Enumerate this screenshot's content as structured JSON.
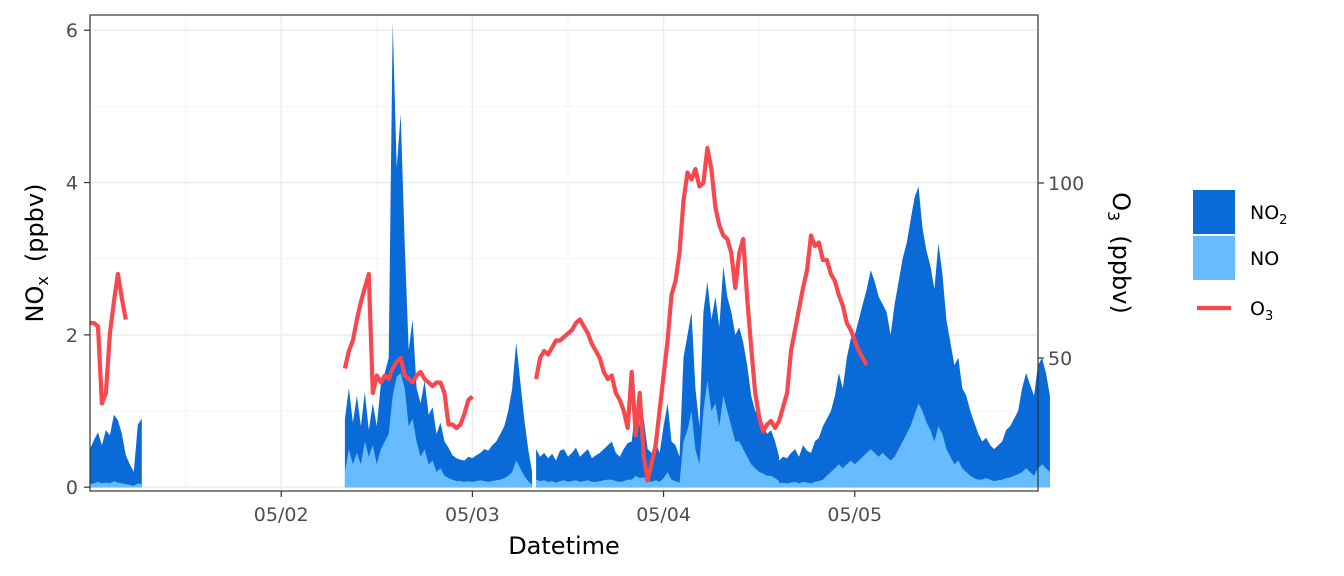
{
  "chart_data": {
    "type": "area",
    "xlabel": "Datetime",
    "ylabel_left": {
      "main": "NO",
      "sub": "x",
      "unit": "(ppbv)"
    },
    "ylabel_right": {
      "main": "O",
      "sub": "3",
      "unit": "(ppbv)"
    },
    "x_domain": [
      "2019-05-01 00:00",
      "2019-05-05 23:00"
    ],
    "x_ticks": [
      {
        "label": "05/02",
        "t": "2019-05-02 00:00"
      },
      {
        "label": "05/03",
        "t": "2019-05-03 00:00"
      },
      {
        "label": "05/04",
        "t": "2019-05-04 00:00"
      },
      {
        "label": "05/05",
        "t": "2019-05-05 00:00"
      }
    ],
    "ylim_left": [
      -0.05,
      6.2
    ],
    "yticks_left": [
      0,
      2,
      4,
      6
    ],
    "ylim_right": [
      12,
      148
    ],
    "yticks_right": [
      50,
      100
    ],
    "grid": true,
    "legend_position": "right",
    "legend": [
      {
        "label": "NO",
        "sub": "2",
        "kind": "fill",
        "color": "#0a6ad8"
      },
      {
        "label": "NO",
        "sub": "",
        "kind": "fill",
        "color": "#66bcff"
      },
      {
        "label": "O",
        "sub": "3",
        "kind": "line",
        "color": "#f6484e"
      }
    ],
    "colors": {
      "no2": "#0a6ad8",
      "no": "#66bcff",
      "o3": "#f6484e"
    },
    "series": [
      {
        "name": "NOx",
        "axis": "left",
        "segments": [
          {
            "start": "2019-05-01 00:00",
            "step_hours": 0.5,
            "values": [
              0.5,
              0.62,
              0.72,
              0.55,
              0.75,
              0.68,
              0.95,
              0.88,
              0.7,
              0.42,
              0.3,
              0.2,
              0.82,
              0.9
            ]
          },
          {
            "start": "2019-05-02 08:00",
            "step_hours": 0.5,
            "values": [
              0.9,
              1.3,
              0.85,
              1.2,
              0.8,
              1.25,
              0.75,
              1.1,
              0.8,
              1.35,
              1.5,
              1.7,
              6.1,
              4.2,
              4.9,
              3.2,
              1.8,
              2.2,
              1.3,
              1.1,
              1.4,
              0.95,
              1.05,
              0.7,
              0.85,
              0.6,
              0.52,
              0.42,
              0.38,
              0.36,
              0.35,
              0.4,
              0.38,
              0.42,
              0.45,
              0.5,
              0.48,
              0.55,
              0.6,
              0.7,
              0.8,
              1.0,
              1.3,
              1.9,
              1.4,
              0.9,
              0.5,
              0.2
            ]
          },
          {
            "start": "2019-05-03 08:00",
            "step_hours": 0.5,
            "values": [
              0.5,
              0.4,
              0.45,
              0.38,
              0.44,
              0.35,
              0.48,
              0.5,
              0.4,
              0.45,
              0.52,
              0.4,
              0.45,
              0.5,
              0.38,
              0.42,
              0.45,
              0.5,
              0.55,
              0.6,
              0.45,
              0.4,
              0.5,
              0.58,
              0.6,
              1.05,
              0.8,
              0.9,
              0.5,
              0.45,
              0.6,
              0.45,
              0.8,
              1.1,
              0.6,
              0.55,
              0.4,
              1.7,
              2.0,
              2.3,
              1.3,
              0.8,
              2.3,
              2.7,
              2.2,
              2.5,
              2.1,
              2.9,
              2.5,
              2.3,
              2.0,
              2.1,
              1.9,
              1.6,
              1.2,
              1.0,
              0.95,
              0.8,
              0.7,
              0.75,
              0.6,
              0.4
            ]
          },
          {
            "start": "2019-05-04 14:00",
            "step_hours": 0.5,
            "values": [
              0.3,
              0.35,
              0.4,
              0.38,
              0.45,
              0.5,
              0.4,
              0.55,
              0.48,
              0.45,
              0.6,
              0.65,
              0.8,
              0.9,
              1.0,
              1.2,
              1.5,
              1.3,
              1.7,
              1.95,
              2.0,
              2.2,
              2.4,
              2.6,
              2.85,
              2.7,
              2.5,
              2.4,
              2.3,
              2.0,
              2.4,
              2.7,
              3.0,
              3.2,
              3.5,
              3.8,
              3.95,
              3.4,
              3.1,
              2.9,
              2.6,
              3.2,
              2.8,
              2.2,
              1.9,
              1.6,
              1.7,
              1.3,
              1.2,
              1.0,
              0.85,
              0.7,
              0.6,
              0.65,
              0.55,
              0.5,
              0.55,
              0.6,
              0.75,
              0.8,
              0.9,
              1.0,
              1.3,
              1.5,
              1.35,
              1.2,
              1.6,
              1.7,
              1.5,
              1.2
            ]
          }
        ]
      },
      {
        "name": "NO",
        "axis": "left",
        "segments": [
          {
            "start": "2019-05-01 00:00",
            "step_hours": 0.5,
            "values": [
              0.04,
              0.05,
              0.07,
              0.05,
              0.06,
              0.05,
              0.08,
              0.06,
              0.05,
              0.04,
              0.03,
              0.02,
              0.05,
              0.04
            ]
          },
          {
            "start": "2019-05-02 08:00",
            "step_hours": 0.5,
            "values": [
              0.2,
              0.5,
              0.3,
              0.45,
              0.3,
              0.6,
              0.4,
              0.55,
              0.3,
              0.5,
              0.6,
              0.7,
              1.2,
              1.45,
              1.5,
              1.3,
              0.8,
              0.9,
              0.6,
              0.4,
              0.5,
              0.3,
              0.35,
              0.2,
              0.25,
              0.15,
              0.12,
              0.1,
              0.08,
              0.08,
              0.07,
              0.08,
              0.07,
              0.08,
              0.09,
              0.08,
              0.07,
              0.08,
              0.09,
              0.1,
              0.12,
              0.15,
              0.2,
              0.35,
              0.25,
              0.15,
              0.08,
              0.03
            ]
          },
          {
            "start": "2019-05-03 08:00",
            "step_hours": 0.5,
            "values": [
              0.1,
              0.08,
              0.09,
              0.07,
              0.08,
              0.06,
              0.08,
              0.09,
              0.07,
              0.08,
              0.09,
              0.07,
              0.08,
              0.09,
              0.07,
              0.07,
              0.08,
              0.09,
              0.1,
              0.1,
              0.08,
              0.07,
              0.08,
              0.1,
              0.1,
              0.15,
              0.12,
              0.13,
              0.08,
              0.07,
              0.09,
              0.07,
              0.12,
              0.2,
              0.1,
              0.08,
              0.06,
              0.6,
              0.75,
              1.0,
              0.5,
              0.3,
              1.0,
              1.4,
              1.0,
              1.1,
              0.8,
              1.2,
              1.0,
              0.8,
              0.6,
              0.6,
              0.5,
              0.4,
              0.3,
              0.25,
              0.2,
              0.18,
              0.15,
              0.15,
              0.12,
              0.08
            ]
          },
          {
            "start": "2019-05-04 14:00",
            "step_hours": 0.5,
            "values": [
              0.05,
              0.05,
              0.06,
              0.05,
              0.06,
              0.07,
              0.05,
              0.07,
              0.06,
              0.05,
              0.07,
              0.08,
              0.1,
              0.15,
              0.2,
              0.25,
              0.3,
              0.25,
              0.3,
              0.35,
              0.3,
              0.35,
              0.4,
              0.45,
              0.5,
              0.45,
              0.4,
              0.45,
              0.4,
              0.35,
              0.4,
              0.5,
              0.6,
              0.7,
              0.8,
              0.95,
              1.1,
              1.0,
              0.85,
              0.75,
              0.6,
              0.8,
              0.7,
              0.5,
              0.4,
              0.3,
              0.35,
              0.25,
              0.2,
              0.15,
              0.12,
              0.1,
              0.1,
              0.12,
              0.1,
              0.08,
              0.09,
              0.1,
              0.12,
              0.13,
              0.15,
              0.17,
              0.2,
              0.25,
              0.2,
              0.15,
              0.25,
              0.3,
              0.25,
              0.2
            ]
          }
        ]
      },
      {
        "name": "O3",
        "axis": "right",
        "segments": [
          {
            "start": "2019-05-01 00:00",
            "step_hours": 0.5,
            "values": [
              60,
              60,
              59,
              37,
              40,
              57,
              66,
              74,
              67,
              61
            ]
          },
          {
            "start": "2019-05-02 08:00",
            "step_hours": 0.5,
            "values": [
              47,
              52,
              55,
              61,
              66,
              70,
              74,
              40,
              45,
              43,
              45,
              44,
              47,
              49,
              50,
              45,
              44,
              43,
              45,
              46,
              44,
              43,
              42,
              43,
              43,
              40,
              31,
              31,
              30,
              31,
              34,
              38,
              39
            ]
          },
          {
            "start": "2019-05-03 08:00",
            "step_hours": 0.5,
            "values": [
              44,
              50,
              52,
              51,
              53,
              55,
              55,
              56,
              57,
              58,
              60,
              61,
              59,
              57,
              54,
              52,
              50,
              46,
              44,
              45,
              40,
              38,
              35,
              30,
              46,
              28,
              40,
              22,
              15,
              20,
              25,
              35,
              45,
              55,
              68,
              72,
              80,
              95,
              103,
              101,
              104,
              99,
              100,
              110,
              104,
              93,
              88,
              85,
              84,
              80,
              70,
              80,
              84,
              67,
              53,
              40,
              33,
              29,
              31,
              32,
              30,
              32,
              36,
              40,
              52,
              58,
              64,
              70,
              75,
              85,
              82,
              83,
              78,
              78,
              74,
              72,
              68,
              65,
              60,
              58,
              55,
              52,
              50,
              48
            ]
          }
        ]
      }
    ]
  }
}
